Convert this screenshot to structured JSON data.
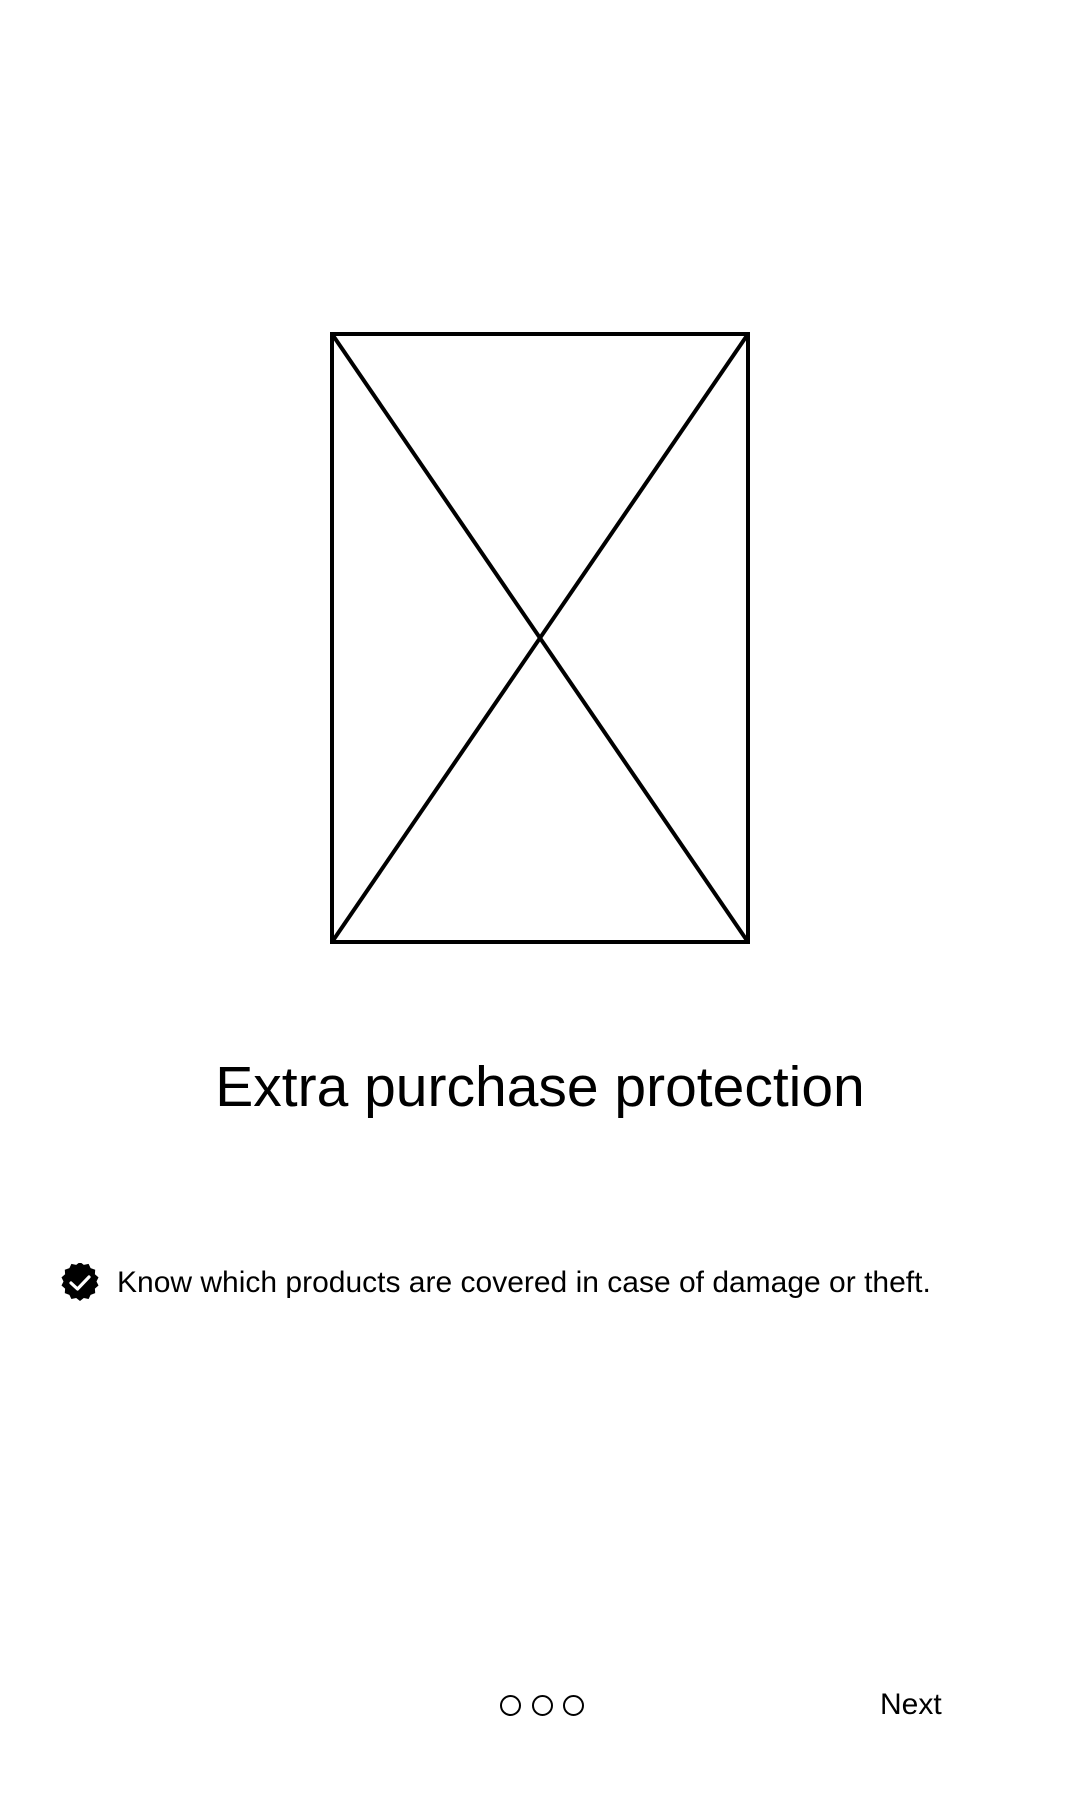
{
  "onboarding": {
    "hero_image": {
      "icon": "image-placeholder-icon"
    },
    "title": "Extra purchase protection",
    "features": [
      {
        "icon": "check-circle-icon",
        "text": "Know which products are covered in case of damage or theft."
      }
    ],
    "pager": {
      "count": 3,
      "current": 1
    },
    "next_label": "Next"
  }
}
